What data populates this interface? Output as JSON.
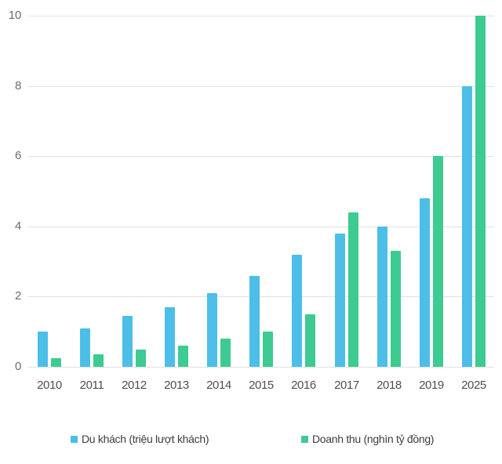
{
  "chart_data": {
    "type": "bar",
    "title": "",
    "xlabel": "",
    "ylabel": "",
    "categories": [
      "2010",
      "2011",
      "2012",
      "2013",
      "2014",
      "2015",
      "2016",
      "2017",
      "2018",
      "2019",
      "2025"
    ],
    "series": [
      {
        "name": "Du khách (triệu lượt khách)",
        "color": "#4CBEE8",
        "values": [
          1.0,
          1.1,
          1.45,
          1.7,
          2.1,
          2.6,
          3.2,
          3.8,
          4.0,
          4.8,
          8.0
        ]
      },
      {
        "name": "Doanh thu (nghìn tỷ đồng)",
        "color": "#3DCB92",
        "values": [
          0.25,
          0.35,
          0.5,
          0.6,
          0.8,
          1.0,
          1.5,
          4.4,
          3.3,
          6.0,
          10.0
        ]
      }
    ],
    "ylim": [
      0,
      10
    ],
    "yticks": [
      0,
      2,
      4,
      6,
      8,
      10
    ],
    "grid": true,
    "legend_position": "bottom",
    "gridline_color": "#e1e1e1",
    "background_color": "#ffffff"
  }
}
